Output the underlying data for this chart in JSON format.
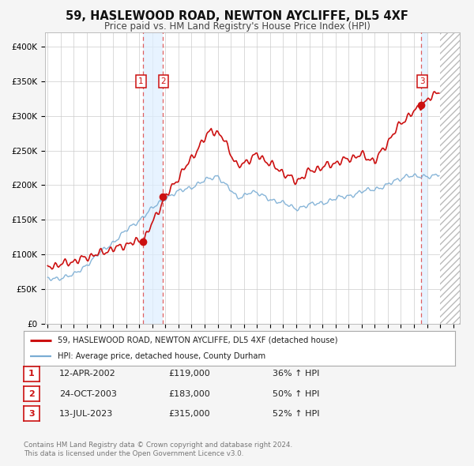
{
  "title": "59, HASLEWOOD ROAD, NEWTON AYCLIFFE, DL5 4XF",
  "subtitle": "Price paid vs. HM Land Registry's House Price Index (HPI)",
  "sale_prices": [
    119000,
    183000,
    315000
  ],
  "sale_labels": [
    "1",
    "2",
    "3"
  ],
  "sale_hpi_pct": [
    "36% ↑ HPI",
    "50% ↑ HPI",
    "52% ↑ HPI"
  ],
  "sale_dates_str": [
    "12-APR-2002",
    "24-OCT-2003",
    "13-JUL-2023"
  ],
  "sale_price_str": [
    "£119,000",
    "£183,000",
    "£315,000"
  ],
  "sale_year_floats": [
    2002.283,
    2003.808,
    2023.536
  ],
  "hpi_line_color": "#7aadd4",
  "price_line_color": "#cc1111",
  "sale_dot_color": "#cc1111",
  "vline_color": "#dd4444",
  "vshade_color": "#ddeeff",
  "ylabel_ticks": [
    0,
    50000,
    100000,
    150000,
    200000,
    250000,
    300000,
    350000,
    400000
  ],
  "ylabel_labels": [
    "£0",
    "£50K",
    "£100K",
    "£150K",
    "£200K",
    "£250K",
    "£300K",
    "£350K",
    "£400K"
  ],
  "xmin": 1994.8,
  "xmax": 2026.5,
  "ymin": 0,
  "ymax": 420000,
  "legend_label_red": "59, HASLEWOOD ROAD, NEWTON AYCLIFFE, DL5 4XF (detached house)",
  "legend_label_blue": "HPI: Average price, detached house, County Durham",
  "footer_line1": "Contains HM Land Registry data © Crown copyright and database right 2024.",
  "footer_line2": "This data is licensed under the Open Government Licence v3.0.",
  "background_color": "#f5f5f5",
  "plot_bg_color": "#ffffff"
}
